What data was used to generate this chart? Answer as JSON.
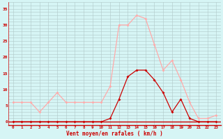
{
  "hours": [
    0,
    1,
    2,
    3,
    4,
    5,
    6,
    7,
    8,
    9,
    10,
    11,
    12,
    13,
    14,
    15,
    16,
    17,
    18,
    19,
    20,
    21,
    22,
    23
  ],
  "vent_moyen": [
    0,
    0,
    0,
    0,
    0,
    0,
    0,
    0,
    0,
    0,
    0,
    1,
    7,
    14,
    16,
    16,
    13,
    9,
    3,
    7,
    1,
    0,
    0,
    0
  ],
  "rafales": [
    6,
    6,
    6,
    3,
    6,
    9,
    6,
    6,
    6,
    6,
    6,
    11,
    30,
    30,
    33,
    32,
    24,
    16,
    19,
    13,
    6,
    1,
    1,
    2
  ],
  "line_color_moyen": "#cc0000",
  "line_color_rafales": "#ffaaaa",
  "bg_color": "#d6f5f5",
  "grid_color": "#b0c8c8",
  "xlabel": "Vent moyen/en rafales ( km/h )",
  "yticks": [
    0,
    5,
    10,
    15,
    20,
    25,
    30,
    35
  ],
  "xlim_min": -0.5,
  "xlim_max": 23.5,
  "ylim_min": -1,
  "ylim_max": 37
}
